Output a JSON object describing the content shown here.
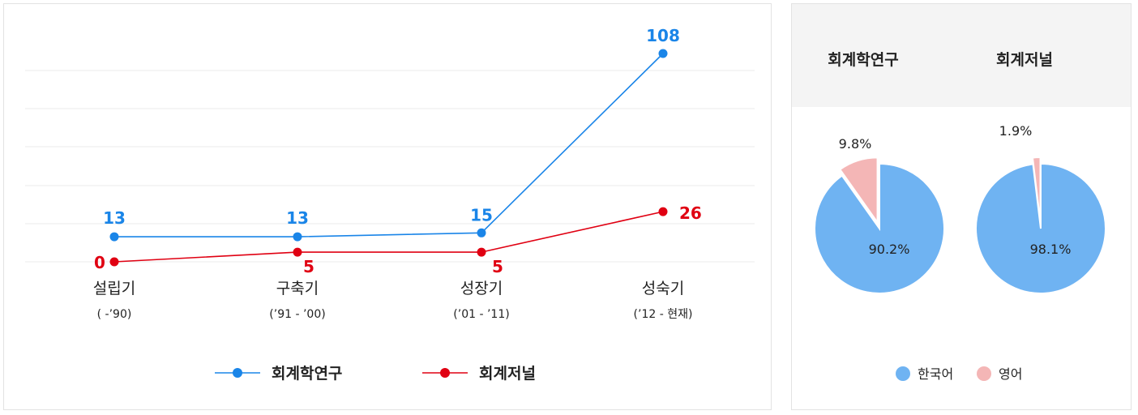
{
  "chart_data": [
    {
      "type": "line",
      "categories": [
        "설립기",
        "구축기",
        "성장기",
        "성숙기"
      ],
      "category_sublabels": [
        "( -’90)",
        "(’91 - ’00)",
        "(’01 - ’11)",
        "(’12 - 현재)"
      ],
      "series": [
        {
          "name": "회계학연구",
          "values": [
            13,
            13,
            15,
            108
          ],
          "color": "#1a85e8"
        },
        {
          "name": "회계저널",
          "values": [
            0,
            5,
            5,
            26
          ],
          "color": "#e00012"
        }
      ],
      "legend_position": "bottom",
      "grid": true,
      "ylim": [
        0,
        128
      ]
    },
    {
      "type": "pie",
      "pies": [
        {
          "title": "회계학연구",
          "slices": [
            {
              "label": "한국어",
              "value": 90.2,
              "text": "90.2%"
            },
            {
              "label": "영어",
              "value": 9.8,
              "text": "9.8%"
            }
          ]
        },
        {
          "title": "회계저널",
          "slices": [
            {
              "label": "한국어",
              "value": 98.1,
              "text": "98.1%"
            },
            {
              "label": "영어",
              "value": 1.9,
              "text": "1.9%"
            }
          ]
        }
      ],
      "legend": [
        {
          "label": "한국어",
          "color": "#6fb3f2"
        },
        {
          "label": "영어",
          "color": "#f4b6b6"
        }
      ],
      "legend_position": "bottom"
    }
  ]
}
